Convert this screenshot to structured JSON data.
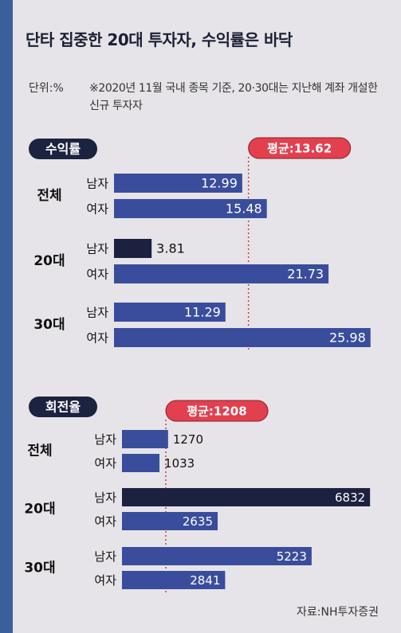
{
  "title": "단타 집중한 20대 투자자, 수익률은 바닥",
  "unit": "단위:%",
  "note": "※2020년 11월 국내 종목 기준, 20·30대는 지난해 계좌 개설한 신규 투자자",
  "source": "자료:NH투자증권",
  "chart_data": [
    {
      "type": "bar",
      "orientation": "horizontal",
      "label": "수익률",
      "groups": [
        "전체",
        "20대",
        "30대"
      ],
      "categories": [
        "남자",
        "여자",
        "남자",
        "여자",
        "남자",
        "여자"
      ],
      "values": [
        12.99,
        15.48,
        3.81,
        21.73,
        11.29,
        25.98
      ],
      "colors": [
        "#3a4d9c",
        "#3a4d9c",
        "#1d2140",
        "#3a4d9c",
        "#3a4d9c",
        "#3a4d9c"
      ],
      "xlim": [
        0,
        26
      ],
      "average": {
        "value": 13.62,
        "label": "평균:13.62"
      }
    },
    {
      "type": "bar",
      "orientation": "horizontal",
      "label": "회전율",
      "groups": [
        "전체",
        "20대",
        "30대"
      ],
      "categories": [
        "남자",
        "여자",
        "남자",
        "여자",
        "남자",
        "여자"
      ],
      "values": [
        1270,
        1033,
        6832,
        2635,
        5223,
        2841
      ],
      "colors": [
        "#3a4d9c",
        "#3a4d9c",
        "#1d2140",
        "#3a4d9c",
        "#3a4d9c",
        "#3a4d9c"
      ],
      "xlim": [
        0,
        6850
      ],
      "average": {
        "value": 1208,
        "label": "평균:1208"
      }
    }
  ]
}
